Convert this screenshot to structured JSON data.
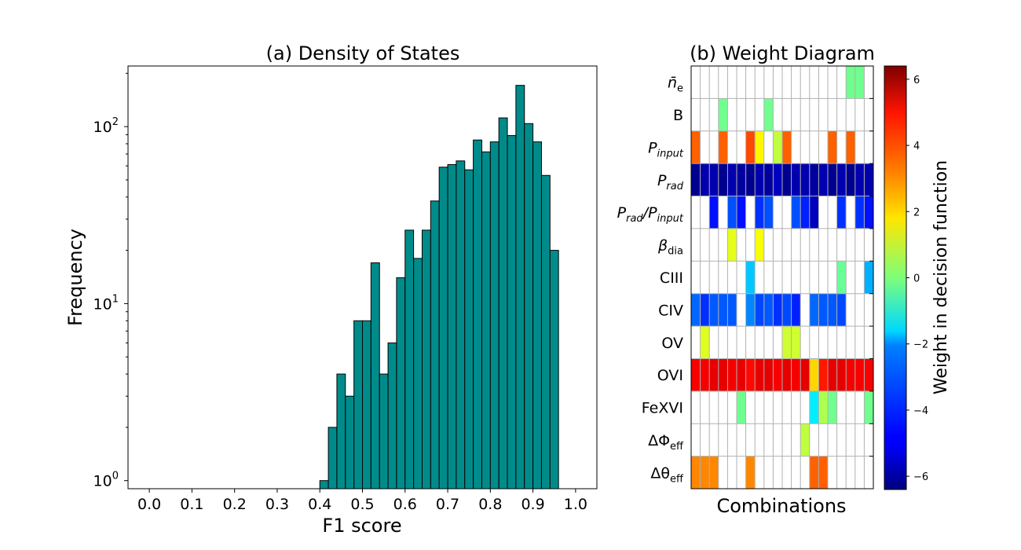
{
  "chart_data": [
    {
      "type": "bar",
      "title": "(a) Density of States",
      "xlabel": "F1 score",
      "ylabel": "Frequency",
      "xlim": [
        -0.05,
        1.05
      ],
      "ylim": [
        0.9,
        220
      ],
      "yscale": "log",
      "grid": false,
      "xticks": [
        "0.0",
        "0.1",
        "0.2",
        "0.3",
        "0.4",
        "0.5",
        "0.6",
        "0.7",
        "0.8",
        "0.9",
        "1.0"
      ],
      "yticks": [
        {
          "value": 1,
          "base": "10",
          "exp": "0"
        },
        {
          "value": 10,
          "base": "10",
          "exp": "1"
        },
        {
          "value": 100,
          "base": "10",
          "exp": "2"
        }
      ],
      "bar_color": "#008b8b",
      "bin_width": 0.02,
      "bin_starts": [
        0.4,
        0.42,
        0.44,
        0.46,
        0.48,
        0.5,
        0.52,
        0.54,
        0.56,
        0.58,
        0.6,
        0.62,
        0.64,
        0.66,
        0.68,
        0.7,
        0.72,
        0.74,
        0.76,
        0.78,
        0.8,
        0.82,
        0.84,
        0.86,
        0.88,
        0.9,
        0.92,
        0.94
      ],
      "values": [
        1,
        2,
        4,
        3,
        8,
        8,
        17,
        4,
        6,
        14,
        26,
        18,
        26,
        38,
        59,
        61,
        64,
        57,
        84,
        72,
        82,
        112,
        89,
        171,
        104,
        82,
        53,
        20
      ]
    },
    {
      "type": "heatmap",
      "title": "(b) Weight Diagram",
      "xlabel": "Combinations",
      "colorbar_label": "Weight in decision function",
      "colormap": "jet",
      "vmin": -6.4,
      "vmax": 6.4,
      "colorbar_ticks": [
        "6",
        "4",
        "2",
        "0",
        "−2",
        "−4",
        "−6"
      ],
      "colorbar_tick_values": [
        6,
        4,
        2,
        0,
        -2,
        -4,
        -6
      ],
      "rows": [
        {
          "main": "n̄",
          "sub": "e",
          "italic": true
        },
        {
          "main": "B",
          "sub": "",
          "italic": false
        },
        {
          "main": "P",
          "sub": "input",
          "italic": true
        },
        {
          "main": "P",
          "sub": "rad",
          "italic": true
        },
        {
          "main": "P",
          "sub": "rad",
          "main2": "/P",
          "sub2": "input",
          "italic": true
        },
        {
          "main": "β",
          "sub": "dia",
          "italic": true
        },
        {
          "main": "CIII",
          "sub": "",
          "italic": false
        },
        {
          "main": "CIV",
          "sub": "",
          "italic": false
        },
        {
          "main": "OV",
          "sub": "",
          "italic": false
        },
        {
          "main": "OVI",
          "sub": "",
          "italic": false
        },
        {
          "main": "FeXVI",
          "sub": "",
          "italic": false
        },
        {
          "main": "ΔΦ",
          "sub": "eff",
          "italic": false
        },
        {
          "main": "Δθ",
          "sub": "eff",
          "italic": false
        }
      ],
      "n_columns": 20,
      "matrix": [
        [
          null,
          null,
          null,
          null,
          null,
          null,
          null,
          null,
          null,
          null,
          null,
          null,
          null,
          null,
          null,
          null,
          null,
          -0.2,
          -0.2,
          null
        ],
        [
          null,
          null,
          null,
          -0.2,
          null,
          null,
          null,
          null,
          -0.2,
          null,
          null,
          null,
          null,
          null,
          null,
          null,
          null,
          null,
          null,
          null
        ],
        [
          3.6,
          null,
          null,
          3.6,
          null,
          null,
          3.9,
          1.7,
          null,
          0.8,
          3.6,
          null,
          null,
          null,
          null,
          3.6,
          null,
          3.6,
          null,
          null
        ],
        [
          -6.2,
          -5.8,
          -5.8,
          -6.2,
          -5.8,
          -6.0,
          -6.2,
          -5.8,
          -6.0,
          -5.6,
          -6.2,
          -5.8,
          -5.8,
          -6.0,
          -5.8,
          -6.2,
          -5.8,
          -6.2,
          -5.8,
          -5.8
        ],
        [
          null,
          null,
          -4.6,
          null,
          -3.8,
          -4.6,
          null,
          -4.2,
          -3.8,
          null,
          null,
          -3.8,
          -4.4,
          -5.6,
          null,
          null,
          -4.2,
          null,
          -4.2,
          -4.6
        ],
        [
          null,
          null,
          null,
          null,
          1.3,
          null,
          null,
          1.5,
          null,
          null,
          null,
          null,
          null,
          null,
          null,
          null,
          null,
          null,
          null,
          null
        ],
        [
          null,
          null,
          null,
          null,
          null,
          null,
          -2.3,
          null,
          null,
          null,
          null,
          null,
          null,
          null,
          null,
          null,
          -0.3,
          null,
          null,
          -2.6
        ],
        [
          -3.5,
          -4.2,
          -3.7,
          -3.7,
          -3.7,
          null,
          -3.1,
          -3.9,
          -3.7,
          -4.2,
          -3.9,
          -4.4,
          null,
          -3.5,
          -3.7,
          -3.7,
          -3.9,
          null,
          null,
          null
        ],
        [
          null,
          1.2,
          null,
          null,
          null,
          null,
          null,
          null,
          null,
          null,
          1.0,
          1.0,
          null,
          null,
          null,
          null,
          null,
          null,
          null,
          null
        ],
        [
          4.9,
          4.9,
          5.1,
          5.1,
          4.9,
          5.1,
          4.7,
          5.1,
          5.1,
          4.9,
          5.1,
          4.9,
          5.1,
          2.1,
          4.5,
          5.1,
          5.1,
          4.9,
          4.9,
          4.9
        ],
        [
          null,
          null,
          null,
          null,
          null,
          -0.2,
          null,
          null,
          null,
          null,
          null,
          null,
          null,
          -1.8,
          0.6,
          -0.2,
          null,
          null,
          null,
          -0.2
        ],
        [
          null,
          null,
          null,
          null,
          null,
          null,
          null,
          null,
          null,
          null,
          null,
          null,
          0.8,
          null,
          null,
          null,
          null,
          null,
          null,
          null
        ],
        [
          3.1,
          3.1,
          3.1,
          null,
          null,
          null,
          3.1,
          null,
          null,
          null,
          null,
          null,
          null,
          3.6,
          3.6,
          null,
          null,
          null,
          null,
          null
        ]
      ]
    }
  ]
}
